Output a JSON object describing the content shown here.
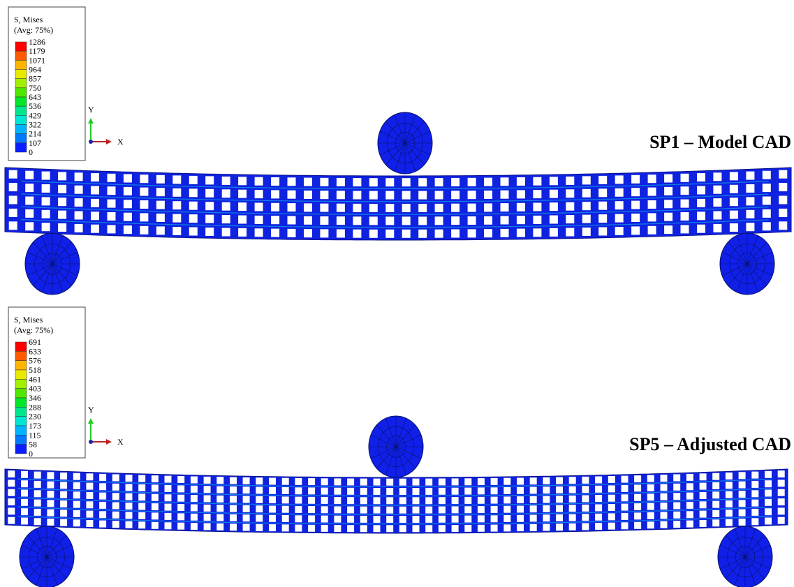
{
  "panels": [
    {
      "title": "SP1 – Model CAD",
      "legend": {
        "title": "S, Mises",
        "subtitle": "(Avg: 75%)",
        "values": [
          1286,
          1179,
          1071,
          964,
          857,
          750,
          643,
          536,
          429,
          322,
          214,
          107,
          0
        ]
      },
      "axes": {
        "y": "Y",
        "x": "X"
      }
    },
    {
      "title": "SP5 – Adjusted CAD",
      "legend": {
        "title": "S, Mises",
        "subtitle": "(Avg: 75%)",
        "values": [
          691,
          633,
          576,
          518,
          461,
          403,
          346,
          288,
          230,
          173,
          115,
          58,
          0
        ]
      },
      "axes": {
        "y": "Y",
        "x": "X"
      }
    }
  ]
}
